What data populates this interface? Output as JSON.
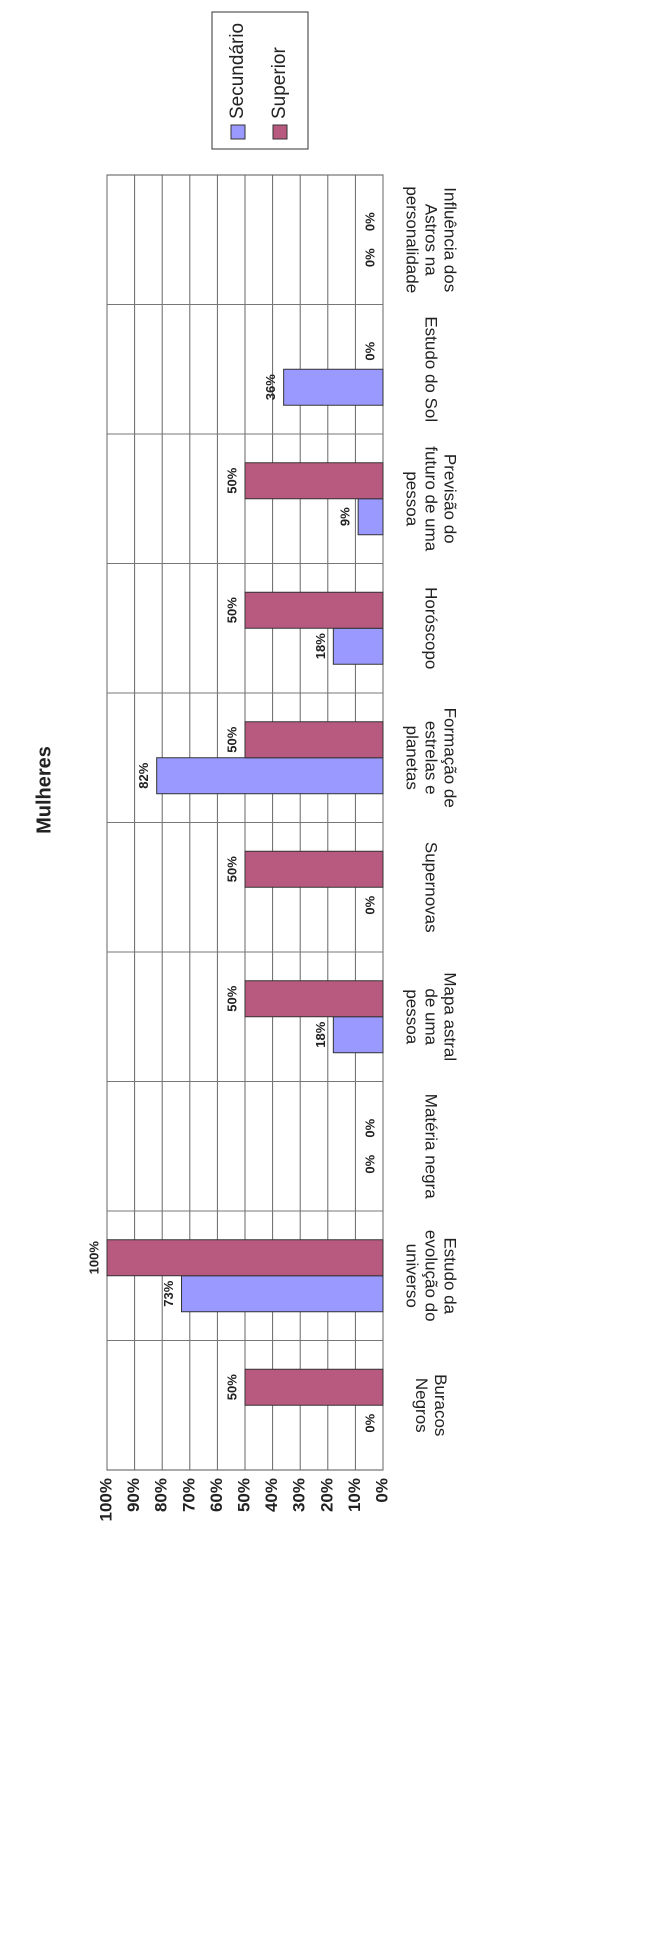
{
  "chart_data": {
    "type": "bar",
    "title": "Mulheres",
    "categories": [
      [
        "Buracos",
        "Negros"
      ],
      [
        "Estudo da",
        "evolução do",
        "universo"
      ],
      [
        "Matéria negra"
      ],
      [
        "Mapa astral",
        "de uma",
        "pessoa"
      ],
      [
        "Supernovas"
      ],
      [
        "Formação de",
        "estrelas e",
        "planetas"
      ],
      [
        "Horóscopo"
      ],
      [
        "Previsão do",
        "futuro de uma",
        "pessoa"
      ],
      [
        "Estudo do Sol"
      ],
      [
        "Influência dos",
        "Astros na",
        "personalidade"
      ]
    ],
    "series": [
      {
        "name": "Secundário",
        "color": "#9999ff",
        "values": [
          0,
          73,
          0,
          18,
          0,
          82,
          18,
          9,
          36,
          0
        ],
        "value_labels": [
          "0%",
          "73%",
          "0%",
          "18%",
          "0%",
          "82%",
          "18%",
          "9%",
          "36%",
          "0%"
        ]
      },
      {
        "name": "Superior",
        "color": "#b85a80",
        "values": [
          50,
          100,
          0,
          50,
          50,
          50,
          50,
          50,
          0,
          0
        ],
        "value_labels": [
          "50%",
          "100%",
          "0%",
          "50%",
          "50%",
          "50%",
          "50%",
          "50%",
          "0%",
          "0%"
        ]
      }
    ],
    "ylim": [
      0,
      100
    ],
    "yticks": [
      {
        "value": 0,
        "label": "0%"
      },
      {
        "value": 10,
        "label": "10%"
      },
      {
        "value": 20,
        "label": "20%"
      },
      {
        "value": 30,
        "label": "30%"
      },
      {
        "value": 40,
        "label": "40%"
      },
      {
        "value": 50,
        "label": "50%"
      },
      {
        "value": 60,
        "label": "60%"
      },
      {
        "value": 70,
        "label": "70%"
      },
      {
        "value": 80,
        "label": "80%"
      },
      {
        "value": 90,
        "label": "90%"
      },
      {
        "value": 100,
        "label": "100%"
      }
    ],
    "grid": true
  }
}
